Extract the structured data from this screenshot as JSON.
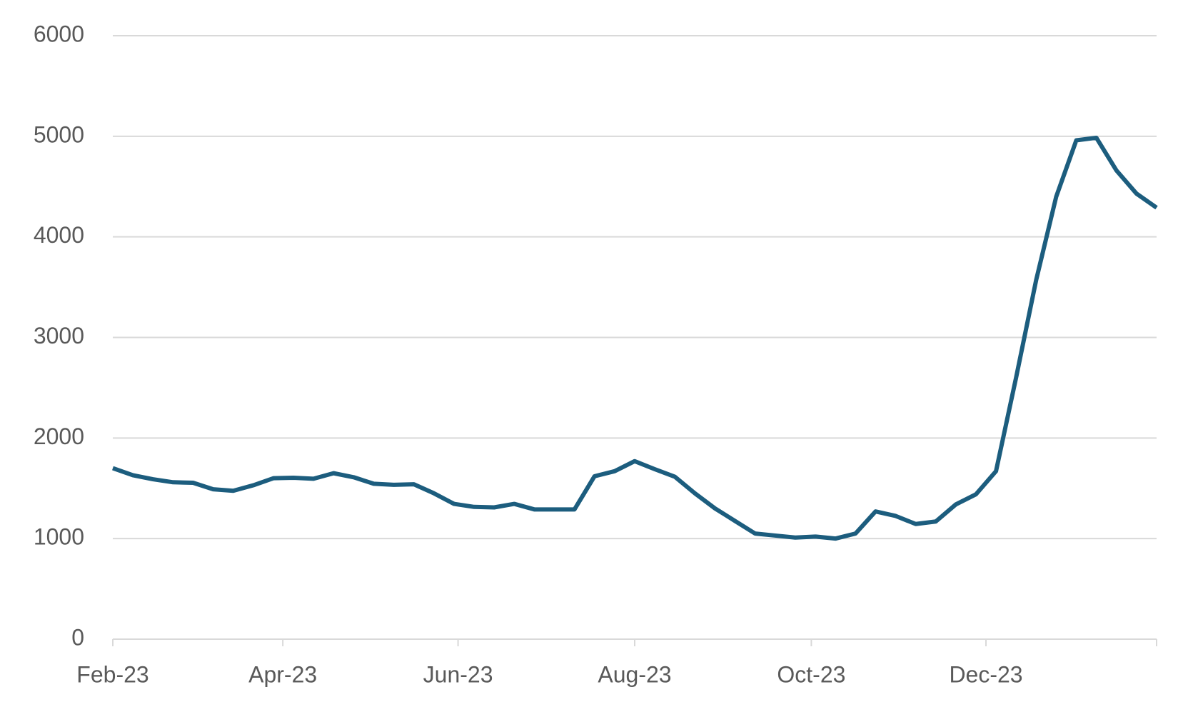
{
  "chart_data": {
    "type": "line",
    "x": [
      0,
      1,
      2,
      3,
      4,
      5,
      6,
      7,
      8,
      9,
      10,
      11,
      12,
      13,
      14,
      15,
      16,
      17,
      18,
      19,
      20,
      21,
      22,
      23,
      24,
      25,
      26,
      27,
      28,
      29,
      30,
      31,
      32,
      33,
      34,
      35,
      36,
      37,
      38,
      39,
      40,
      41,
      42,
      43,
      44,
      45,
      46,
      47,
      48,
      49,
      50,
      51,
      52
    ],
    "series": [
      {
        "color": "#1c5d7e",
        "values": [
          1700,
          1630,
          1590,
          1560,
          1555,
          1490,
          1475,
          1530,
          1600,
          1605,
          1595,
          1650,
          1610,
          1545,
          1535,
          1540,
          1450,
          1345,
          1315,
          1310,
          1345,
          1290,
          1290,
          1290,
          1620,
          1670,
          1770,
          1690,
          1615,
          1450,
          1300,
          1175,
          1050,
          1030,
          1010,
          1020,
          1000,
          1050,
          1270,
          1225,
          1145,
          1170,
          1340,
          1440,
          1670,
          2600,
          3570,
          4400,
          4960,
          4985,
          4660,
          4430,
          4290
        ]
      }
    ],
    "xlim": [
      0,
      52
    ],
    "xticks": [
      {
        "value": 0,
        "label": "Feb-23"
      },
      {
        "value": 8.47,
        "label": "Apr-23"
      },
      {
        "value": 17.2,
        "label": "Jun-23"
      },
      {
        "value": 26.0,
        "label": "Aug-23"
      },
      {
        "value": 34.8,
        "label": "Oct-23"
      },
      {
        "value": 43.5,
        "label": "Dec-23"
      }
    ],
    "ylim": [
      0,
      6000
    ],
    "yticks": [
      0,
      1000,
      2000,
      3000,
      4000,
      5000,
      6000
    ],
    "grid": true
  }
}
